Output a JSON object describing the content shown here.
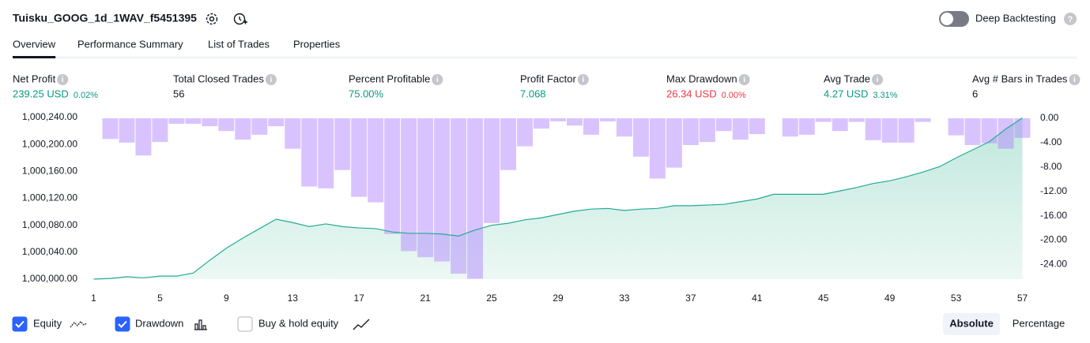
{
  "header": {
    "title": "Tuisku_GOOG_1d_1WAV_f5451395",
    "deep_backtesting": "Deep Backtesting"
  },
  "tabs": [
    "Overview",
    "Performance Summary",
    "List of Trades",
    "Properties"
  ],
  "active_tab": 0,
  "metrics": [
    {
      "label": "Net Profit",
      "value": "239.25 USD",
      "percent": "0.02%",
      "color": "#089981"
    },
    {
      "label": "Total Closed Trades",
      "value": "56",
      "color": "#131722"
    },
    {
      "label": "Percent Profitable",
      "value": "75.00%",
      "color": "#089981"
    },
    {
      "label": "Profit Factor",
      "value": "7.068",
      "color": "#089981"
    },
    {
      "label": "Max Drawdown",
      "value": "26.34 USD",
      "percent": "0.00%",
      "color": "#f23645"
    },
    {
      "label": "Avg Trade",
      "value": "4.27 USD",
      "percent": "3.31%",
      "color": "#089981"
    },
    {
      "label": "Avg # Bars in Trades",
      "value": "6",
      "color": "#131722"
    }
  ],
  "chart_data": {
    "type": "combo",
    "x": [
      1,
      2,
      3,
      4,
      5,
      6,
      7,
      8,
      9,
      10,
      11,
      12,
      13,
      14,
      15,
      16,
      17,
      18,
      19,
      20,
      21,
      22,
      23,
      24,
      25,
      26,
      27,
      28,
      29,
      30,
      31,
      32,
      33,
      34,
      35,
      36,
      37,
      38,
      39,
      40,
      41,
      42,
      43,
      44,
      45,
      46,
      47,
      48,
      49,
      50,
      51,
      52,
      53,
      54,
      55,
      56,
      57
    ],
    "xlim": [
      0.5,
      57.5
    ],
    "xticks": [
      1,
      5,
      9,
      13,
      17,
      21,
      25,
      29,
      33,
      37,
      41,
      45,
      49,
      53,
      57
    ],
    "ylim": [
      1000000,
      1000240
    ],
    "yticks": [
      {
        "value": 1000000,
        "label": "1,000,000.00"
      },
      {
        "value": 1000040,
        "label": "1,000,040.00"
      },
      {
        "value": 1000080,
        "label": "1,000,080.00"
      },
      {
        "value": 1000120,
        "label": "1,000,120.00"
      },
      {
        "value": 1000160,
        "label": "1,000,160.00"
      },
      {
        "value": 1000200,
        "label": "1,000,200.00"
      },
      {
        "value": 1000240,
        "label": "1,000,240.00"
      }
    ],
    "y2lim": [
      -26.4,
      0
    ],
    "y2ticks": [
      {
        "value": 0,
        "label": "0.00"
      },
      {
        "value": -4,
        "label": "-4.00"
      },
      {
        "value": -8,
        "label": "-8.00"
      },
      {
        "value": -12,
        "label": "-12.00"
      },
      {
        "value": -16,
        "label": "-16.00"
      },
      {
        "value": -20,
        "label": "-20.00"
      },
      {
        "value": -24,
        "label": "-24.00"
      }
    ],
    "series": [
      {
        "name": "Equity",
        "type": "line",
        "axis": "y",
        "color": "#22ab94",
        "values": [
          1000000,
          1000001,
          1000003.5,
          1000002,
          1000004.5,
          1000004.5,
          1000009,
          1000028,
          1000046,
          1000061,
          1000075,
          1000089,
          1000084,
          1000078,
          1000082,
          1000078,
          1000076,
          1000075,
          1000070,
          1000068,
          1000068,
          1000067,
          1000064,
          1000073,
          1000080,
          1000083,
          1000088,
          1000091,
          1000096,
          1000101,
          1000104,
          1000105,
          1000102,
          1000104,
          1000105,
          1000109,
          1000109,
          1000110,
          1000111,
          1000115,
          1000119,
          1000126,
          1000126,
          1000126,
          1000126,
          1000131,
          1000136,
          1000142,
          1000146,
          1000152,
          1000159,
          1000167,
          1000180,
          1000192,
          1000204,
          1000223,
          1000239.25
        ]
      },
      {
        "name": "Drawdown",
        "type": "bar",
        "axis": "y2",
        "color": "#b388ff",
        "values": [
          0,
          -3.4,
          -4.0,
          -6.1,
          -3.9,
          -0.9,
          -0.9,
          -1.3,
          -2.1,
          -3.5,
          -2.7,
          -1.3,
          -5.0,
          -11.2,
          -11.5,
          -8.5,
          -12.9,
          -13.8,
          -19.0,
          -21.8,
          -22.8,
          -23.5,
          -25.5,
          -26.34,
          -17.2,
          -8.5,
          -4.6,
          -1.7,
          -0.5,
          -1.2,
          -2.7,
          -0.5,
          -3.0,
          -6.3,
          -9.9,
          -8.1,
          -4.4,
          -3.9,
          -2.1,
          -3.5,
          -2.6,
          0,
          -3.0,
          -2.7,
          -0.6,
          -2.1,
          -0.6,
          -3.6,
          -4.0,
          -4.0,
          -0.6,
          0,
          -2.8,
          -4.4,
          -4.1,
          -5.0,
          -3.2
        ]
      }
    ]
  },
  "chart_controls": {
    "buy_hold": "Buy & hold equity",
    "modes": [
      "Absolute",
      "Percentage"
    ],
    "active_mode": 0
  }
}
